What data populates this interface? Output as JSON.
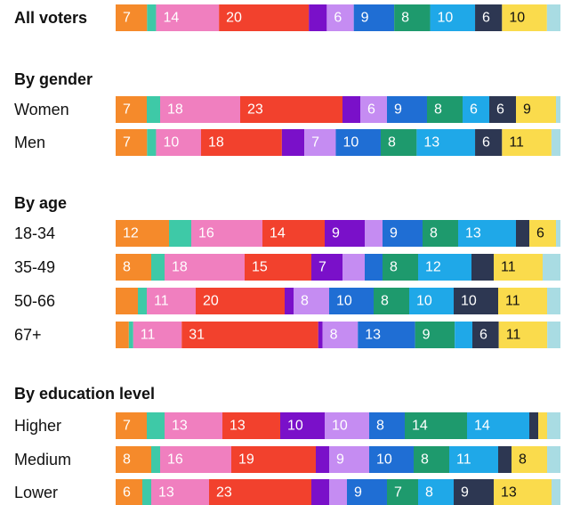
{
  "chart_data": {
    "type": "bar",
    "orientation": "horizontal-stacked-100",
    "title": "",
    "xlabel": "",
    "ylabel": "",
    "colors": [
      "#f58a2b",
      "#3ec9a7",
      "#f07fbf",
      "#f2412d",
      "#7a10c9",
      "#c58cf2",
      "#1f6ed4",
      "#1e9a6d",
      "#1fa8e8",
      "#2d3752",
      "#fadb4c",
      "#a9dce3"
    ],
    "groups": [
      {
        "title": "",
        "rows": [
          {
            "label": "All voters",
            "bold": true,
            "values": [
              7,
              2,
              14,
              20,
              4,
              6,
              9,
              8,
              10,
              6,
              10,
              3
            ]
          }
        ]
      },
      {
        "title": "By gender",
        "rows": [
          {
            "label": "Women",
            "values": [
              7,
              3,
              18,
              23,
              4,
              6,
              9,
              8,
              6,
              6,
              9,
              1
            ]
          },
          {
            "label": "Men",
            "values": [
              7,
              2,
              10,
              18,
              5,
              7,
              10,
              8,
              13,
              6,
              11,
              2
            ]
          }
        ]
      },
      {
        "title": "By age",
        "rows": [
          {
            "label": "18-34",
            "values": [
              12,
              5,
              16,
              14,
              9,
              4,
              9,
              8,
              13,
              3,
              6,
              1
            ]
          },
          {
            "label": "35-49",
            "values": [
              8,
              3,
              18,
              15,
              7,
              5,
              4,
              8,
              12,
              5,
              11,
              4
            ]
          },
          {
            "label": "50-66",
            "values": [
              5,
              2,
              11,
              20,
              2,
              8,
              10,
              8,
              10,
              10,
              11,
              3
            ]
          },
          {
            "label": "67+",
            "values": [
              3,
              1,
              11,
              31,
              1,
              8,
              13,
              9,
              4,
              6,
              11,
              3
            ]
          }
        ]
      },
      {
        "title": "By education level",
        "rows": [
          {
            "label": "Higher",
            "values": [
              7,
              4,
              13,
              13,
              10,
              10,
              8,
              14,
              14,
              2,
              2,
              3
            ]
          },
          {
            "label": "Medium",
            "values": [
              8,
              2,
              16,
              19,
              3,
              9,
              10,
              8,
              11,
              3,
              8,
              3
            ]
          },
          {
            "label": "Lower",
            "values": [
              6,
              2,
              13,
              23,
              4,
              4,
              9,
              7,
              8,
              9,
              13,
              2
            ]
          }
        ]
      }
    ]
  }
}
